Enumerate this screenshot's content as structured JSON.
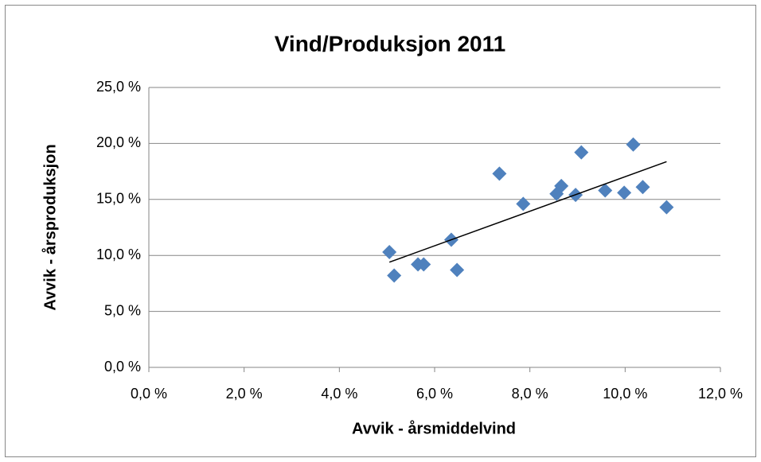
{
  "chart_data": {
    "type": "scatter",
    "title": "Vind/Produksjon 2011",
    "x_label": "Avvik - årsmiddelvind",
    "y_label": "Avvik  - årsproduksjon",
    "color": "#4f81bd",
    "trendline": "linear",
    "grid": true,
    "x": [
      5.05,
      5.15,
      5.65,
      5.77,
      6.35,
      6.47,
      7.36,
      7.86,
      8.56,
      8.66,
      8.96,
      9.08,
      9.58,
      9.98,
      10.17,
      10.37,
      10.87
    ],
    "values": [
      10.3,
      8.2,
      9.2,
      9.2,
      11.4,
      8.7,
      17.3,
      14.6,
      15.5,
      16.2,
      15.4,
      19.2,
      15.8,
      15.6,
      19.9,
      16.1,
      14.3
    ],
    "xlim": [
      0,
      12
    ],
    "ylim": [
      0,
      25
    ],
    "xticks": [
      {
        "value": 0,
        "label": "0,0 %"
      },
      {
        "value": 2,
        "label": "2,0 %"
      },
      {
        "value": 4,
        "label": "4,0 %"
      },
      {
        "value": 6,
        "label": "6,0 %"
      },
      {
        "value": 8,
        "label": "8,0 %"
      },
      {
        "value": 10,
        "label": "10,0 %"
      },
      {
        "value": 12,
        "label": "12,0 %"
      }
    ],
    "yticks": [
      {
        "value": 0,
        "label": "0,0 %"
      },
      {
        "value": 5,
        "label": "5,0 %"
      },
      {
        "value": 10,
        "label": "10,0 %"
      },
      {
        "value": 15,
        "label": "15,0 %"
      },
      {
        "value": 20,
        "label": "20,0 %"
      },
      {
        "value": 25,
        "label": "25,0 %"
      }
    ]
  }
}
